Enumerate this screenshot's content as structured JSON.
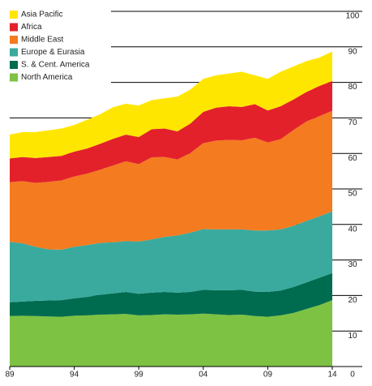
{
  "chart_data": {
    "type": "stacked-area",
    "categories": [
      "89",
      null,
      null,
      null,
      null,
      "94",
      null,
      null,
      null,
      null,
      "99",
      null,
      null,
      null,
      null,
      "04",
      null,
      null,
      null,
      null,
      "09",
      null,
      null,
      null,
      null,
      "14"
    ],
    "series": [
      {
        "name": "Asia Pacific",
        "color": "#ffe600",
        "values": [
          6.7,
          7.0,
          7.3,
          7.5,
          7.7,
          7.5,
          8.1,
          8.3,
          8.9,
          8.7,
          8.9,
          8.2,
          8.5,
          9.8,
          9.6,
          9.3,
          9.1,
          9.2,
          9.9,
          8.1,
          8.9,
          9.7,
          9.3,
          8.7,
          8.0,
          8.3
        ]
      },
      {
        "name": "Africa",
        "color": "#e3212b",
        "values": [
          6.7,
          6.8,
          7.0,
          7.0,
          6.9,
          7.0,
          7.1,
          7.3,
          7.5,
          7.5,
          7.6,
          7.9,
          8.0,
          7.9,
          8.3,
          8.8,
          9.3,
          9.5,
          9.4,
          9.5,
          9.0,
          9.3,
          8.6,
          8.3,
          8.5,
          8.4
        ]
      },
      {
        "name": "Middle East",
        "color": "#f47b20",
        "values": [
          16.8,
          17.5,
          18.0,
          19.0,
          19.5,
          19.8,
          20.1,
          20.6,
          21.6,
          22.5,
          21.8,
          23.1,
          22.5,
          21.4,
          22.4,
          24.2,
          25.0,
          25.2,
          25.1,
          26.1,
          24.8,
          25.4,
          27.0,
          28.0,
          28.2,
          28.3
        ]
      },
      {
        "name": "Europe & Eurasia",
        "color": "#3aaa9e",
        "values": [
          17.0,
          16.4,
          15.2,
          14.4,
          14.2,
          14.5,
          14.6,
          14.6,
          14.4,
          14.3,
          14.7,
          15.0,
          15.5,
          16.1,
          16.7,
          17.1,
          17.1,
          17.1,
          17.0,
          17.2,
          17.3,
          17.2,
          17.2,
          17.3,
          17.3,
          17.4
        ]
      },
      {
        "name": "S. & Cent. America",
        "color": "#006c4f",
        "values": [
          3.9,
          4.0,
          4.3,
          4.5,
          4.7,
          4.9,
          5.2,
          5.6,
          5.9,
          6.2,
          6.1,
          6.3,
          6.3,
          6.2,
          6.3,
          6.7,
          6.8,
          7.0,
          7.0,
          6.9,
          7.0,
          7.0,
          7.3,
          7.5,
          7.7,
          7.6
        ]
      },
      {
        "name": "North America",
        "color": "#7dc242",
        "values": [
          14.2,
          14.3,
          14.2,
          14.1,
          14.0,
          14.3,
          14.4,
          14.6,
          14.7,
          14.8,
          14.4,
          14.5,
          14.7,
          14.6,
          14.7,
          14.9,
          14.7,
          14.5,
          14.6,
          14.2,
          14.0,
          14.4,
          15.1,
          16.2,
          17.3,
          18.7
        ]
      }
    ],
    "ylim": [
      0,
      100
    ],
    "yticks": [
      0,
      10,
      20,
      30,
      40,
      50,
      60,
      70,
      80,
      90,
      100
    ],
    "grid": true,
    "legend": "top-left"
  }
}
